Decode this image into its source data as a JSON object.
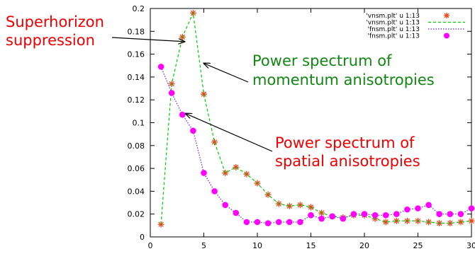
{
  "chart_data": {
    "type": "line",
    "xlim": [
      0,
      30
    ],
    "ylim": [
      0,
      0.2
    ],
    "x_ticks": [
      "0",
      "5",
      "10",
      "15",
      "20",
      "25",
      "30"
    ],
    "y_ticks": [
      "0",
      "0.02",
      "0.04",
      "0.06",
      "0.08",
      "0.1",
      "0.12",
      "0.14",
      "0.16",
      "0.18",
      "0.2"
    ],
    "grid": false,
    "legend_position": "top-right",
    "x": [
      1,
      2,
      3,
      4,
      5,
      6,
      7,
      8,
      9,
      10,
      11,
      12,
      13,
      14,
      15,
      16,
      17,
      18,
      19,
      20,
      21,
      22,
      23,
      24,
      25,
      26,
      27,
      28,
      29,
      30
    ],
    "series": [
      {
        "name": "'vnsm.plt' u 1:13",
        "style": "points",
        "marker": "star",
        "color": "#e8461a",
        "values": [
          0.011,
          0.134,
          0.175,
          0.196,
          0.125,
          0.083,
          0.056,
          0.061,
          0.055,
          0.047,
          0.037,
          0.029,
          0.027,
          0.028,
          0.026,
          0.021,
          0.018,
          0.017,
          0.019,
          0.019,
          0.016,
          0.013,
          0.014,
          0.014,
          0.014,
          0.013,
          0.012,
          0.012,
          0.013,
          0.014
        ]
      },
      {
        "name": "'vnsm.plt' u 1:13",
        "style": "dashed-line",
        "color": "#00cc00",
        "values": [
          0.011,
          0.134,
          0.175,
          0.196,
          0.125,
          0.083,
          0.056,
          0.061,
          0.055,
          0.047,
          0.037,
          0.029,
          0.027,
          0.028,
          0.026,
          0.021,
          0.018,
          0.017,
          0.019,
          0.019,
          0.016,
          0.013,
          0.014,
          0.014,
          0.014,
          0.013,
          0.012,
          0.012,
          0.013,
          0.014
        ]
      },
      {
        "name": "'fnsm.plt' u 1:13",
        "style": "dotted-line",
        "color": "#6a1fd1",
        "values": [
          0.149,
          0.126,
          0.107,
          0.093,
          0.056,
          0.04,
          0.028,
          0.021,
          0.013,
          0.013,
          0.012,
          0.013,
          0.013,
          0.013,
          0.019,
          0.016,
          0.018,
          0.016,
          0.02,
          0.02,
          0.019,
          0.019,
          0.02,
          0.024,
          0.025,
          0.028,
          0.02,
          0.02,
          0.02,
          0.025
        ]
      },
      {
        "name": "'fnsm.plt' u 1:13",
        "style": "points",
        "marker": "circle",
        "color": "#ff00ff",
        "values": [
          0.149,
          0.126,
          0.107,
          0.093,
          0.056,
          0.04,
          0.028,
          0.021,
          0.013,
          0.013,
          0.012,
          0.013,
          0.013,
          0.013,
          0.019,
          0.016,
          0.018,
          0.016,
          0.02,
          0.02,
          0.019,
          0.019,
          0.02,
          0.024,
          0.025,
          0.028,
          0.02,
          0.02,
          0.02,
          0.025
        ]
      }
    ],
    "annotations": [
      {
        "lines": [
          "Superhorizon",
          "suppression"
        ],
        "color": "#ee0000",
        "arrow_to": [
          3.2,
          0.171
        ]
      },
      {
        "lines": [
          "Power spectrum of",
          "momentum anisotropies"
        ],
        "color": "#118811",
        "arrow_to": [
          5.0,
          0.152
        ]
      },
      {
        "lines": [
          "Power spectrum of",
          "spatial anisotropies"
        ],
        "color": "#ee0000",
        "arrow_to": [
          3.3,
          0.108
        ]
      }
    ]
  }
}
